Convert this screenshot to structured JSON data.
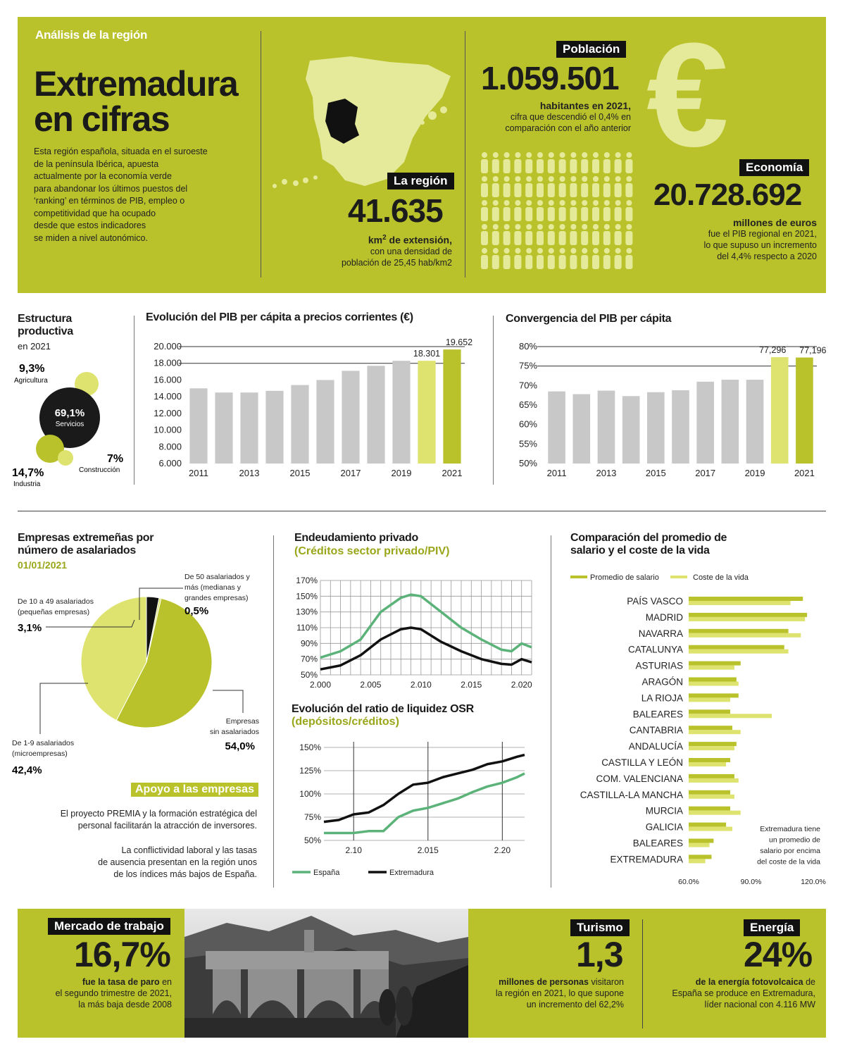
{
  "header": {
    "kicker": "Análisis de la región",
    "title_line1": "Extremadura",
    "title_line2": "en cifras",
    "intro": [
      "Esta región española, situada en el suroeste",
      "de la península Ibérica, apuesta",
      "actualmente por la economía verde",
      "para abandonar los últimos puestos del",
      "‘ranking’ en términos de PIB, empleo o",
      "competitividad que ha ocupado",
      "desde que estos indicadores",
      "se miden a nivel autonómico."
    ]
  },
  "region": {
    "tag": "La región",
    "value": "41.635",
    "unit_prefix": "km",
    "unit_sup": "2",
    "unit_suffix": " de extensión,",
    "line2": "con una densidad de",
    "line3": "población de 25,45 hab/km2"
  },
  "population": {
    "tag": "Población",
    "value": "1.059.501",
    "bold": "habitantes en 2021,",
    "line2": "cifra que descendió el 0,4% en",
    "line3": "comparación con el año anterior"
  },
  "economy": {
    "tag": "Economía",
    "symbol": "€",
    "value": "20.728.692",
    "bold": "millones de euros",
    "line2": "fue el PIB regional en 2021,",
    "line3": "lo que supuso un incremento",
    "line4": "del 4,4% respecto a 2020"
  },
  "structure": {
    "title1": "Estructura",
    "title2": "productiva",
    "year": "en 2021",
    "agri_pct": "9,3%",
    "agri_label": "Agricultura",
    "serv_pct": "69,1%",
    "serv_label": "Servicios",
    "ind_pct": "14,7%",
    "ind_label": "Industria",
    "cons_pct": "7%",
    "cons_label": "Construcción"
  },
  "colors": {
    "lime": "#b9c22a",
    "light_lime": "#dde36e",
    "grey": "#c8c8c8",
    "green_line": "#5cb37a",
    "black": "#111111"
  },
  "chart_data": [
    {
      "type": "bar",
      "title": "Evolución del PIB per cápita a precios corrientes (€)",
      "categories": [
        "2011",
        "2012",
        "2013",
        "2014",
        "2015",
        "2016",
        "2017",
        "2018",
        "2019",
        "2020",
        "2021"
      ],
      "x_tick_labels": [
        "2011",
        "2013",
        "2015",
        "2017",
        "2019",
        "2021"
      ],
      "values": [
        15000,
        14500,
        14500,
        14700,
        15400,
        16000,
        17100,
        17700,
        18300,
        18301,
        19652
      ],
      "data_labels": {
        "2020": "18.301",
        "2021": "19.652"
      },
      "y_tick_labels": [
        "20.000",
        "18.000",
        "16.000",
        "14.000",
        "12.000",
        "10.000",
        "8.000",
        "6.000"
      ],
      "ylim": [
        6000,
        20000
      ]
    },
    {
      "type": "bar",
      "title": "Convergencia del PIB per cápita",
      "categories": [
        "2011",
        "2012",
        "2013",
        "2014",
        "2015",
        "2016",
        "2017",
        "2018",
        "2019",
        "2020",
        "2021"
      ],
      "x_tick_labels": [
        "2011",
        "2013",
        "2015",
        "2017",
        "2019",
        "2021"
      ],
      "values": [
        68.5,
        67.8,
        68.7,
        67.3,
        68.3,
        68.8,
        71,
        71.5,
        71.5,
        77.296,
        77.196
      ],
      "data_labels": {
        "2020": "77,296",
        "2021": "77,196"
      },
      "y_tick_labels": [
        "80%",
        "75%",
        "70%",
        "65%",
        "60%",
        "55%",
        "50%"
      ],
      "ylim": [
        50,
        80
      ]
    },
    {
      "type": "pie",
      "title": "Empresas extremeñas por número de asalariados",
      "subtitle": "01/01/2021",
      "slices": [
        {
          "label": "Empresas sin asalariados",
          "value": 54.0,
          "text": "54,0%"
        },
        {
          "label": "De 1-9 asalariados (microempresas)",
          "value": 42.4,
          "text": "42,4%"
        },
        {
          "label": "De 10 a 49 asalariados (pequeñas empresas)",
          "value": 3.1,
          "text": "3,1%"
        },
        {
          "label": "De 50 asalariados y más (medianas y grandes empresas)",
          "value": 0.5,
          "text": "0,5%"
        }
      ]
    },
    {
      "type": "line",
      "title": "Endeudamiento privado",
      "subtitle": "(Créditos sector privado/PIV)",
      "y_tick_labels": [
        "170%",
        "150%",
        "130%",
        "110%",
        "90%",
        "70%",
        "50%"
      ],
      "x_tick_labels": [
        "2.000",
        "2.005",
        "2.010",
        "2.015",
        "2.020"
      ],
      "xlim": [
        2000,
        2021
      ],
      "ylim": [
        50,
        170
      ],
      "series": [
        {
          "name": "España",
          "x": [
            2000,
            2002,
            2004,
            2006,
            2008,
            2009,
            2010,
            2012,
            2014,
            2016,
            2018,
            2019,
            2020,
            2021
          ],
          "y": [
            72,
            80,
            95,
            130,
            148,
            152,
            150,
            130,
            110,
            95,
            82,
            80,
            90,
            85
          ]
        },
        {
          "name": "Extremadura",
          "x": [
            2000,
            2002,
            2004,
            2006,
            2008,
            2009,
            2010,
            2012,
            2014,
            2016,
            2018,
            2019,
            2020,
            2021
          ],
          "y": [
            57,
            62,
            75,
            95,
            108,
            110,
            108,
            92,
            80,
            70,
            64,
            63,
            70,
            66
          ]
        }
      ]
    },
    {
      "type": "line",
      "title": "Evolución del ratio de liquidez OSR",
      "subtitle": "(depósitos/créditos)",
      "y_tick_labels": [
        "150%",
        "125%",
        "100%",
        "75%",
        "50%"
      ],
      "x_tick_labels": [
        "2.10",
        "2.015",
        "2.20"
      ],
      "xlim": [
        2008,
        2021.5
      ],
      "ylim": [
        50,
        150
      ],
      "legend": [
        "España",
        "Extremadura"
      ],
      "series": [
        {
          "name": "España",
          "x": [
            2008,
            2009,
            2010,
            2011,
            2012,
            2013,
            2014,
            2015,
            2016,
            2017,
            2018,
            2019,
            2020,
            2021,
            2021.5
          ],
          "y": [
            58,
            58,
            58,
            60,
            60,
            75,
            82,
            85,
            90,
            95,
            102,
            108,
            112,
            118,
            122
          ]
        },
        {
          "name": "Extremadura",
          "x": [
            2008,
            2009,
            2010,
            2011,
            2012,
            2013,
            2014,
            2015,
            2016,
            2017,
            2018,
            2019,
            2020,
            2021,
            2021.5
          ],
          "y": [
            70,
            72,
            78,
            80,
            88,
            100,
            110,
            112,
            118,
            122,
            126,
            132,
            135,
            140,
            142
          ]
        }
      ]
    },
    {
      "type": "bar",
      "orientation": "horizontal",
      "title": "Comparación del promedio de salario y el coste de la vida",
      "legend": [
        "Promedio de salario",
        "Coste de la vida"
      ],
      "x_tick_labels": [
        "60.0%",
        "90.0%",
        "120.0%"
      ],
      "xlim": [
        60,
        120
      ],
      "categories": [
        "PAÍS VASCO",
        "MADRID",
        "NAVARRA",
        "CATALUNYA",
        "ASTURIAS",
        "ARAGÓN",
        "LA RIOJA",
        "BALEARES",
        "CANTABRIA",
        "ANDALUCÍA",
        "CASTILLA Y LEÓN",
        "COM. VALENCIANA",
        "CASTILLA-LA MANCHA",
        "MURCIA",
        "GALICIA",
        "BALEARES",
        "EXTREMADURA"
      ],
      "series": [
        {
          "name": "Promedio de salario",
          "values": [
            115,
            117,
            108,
            106,
            85,
            83,
            84,
            80,
            81,
            83,
            80,
            82,
            80,
            80,
            78,
            72,
            71
          ]
        },
        {
          "name": "Coste de la vida",
          "values": [
            109,
            116,
            114,
            108,
            82,
            84,
            80,
            100,
            85,
            82,
            78,
            84,
            82,
            85,
            81,
            70,
            68
          ]
        }
      ],
      "annotation": [
        "Extremadura tiene",
        "un promedio de",
        "salario por encima",
        "del coste de la vida"
      ]
    }
  ],
  "support": {
    "tag": "Apoyo a las empresas",
    "p1": [
      "El proyecto PREMIA y la formación estratégica del",
      "personal facilitarán la atracción de inversores."
    ],
    "p2": [
      "La conflictividad laboral y las tasas",
      "de ausencia presentan en la región unos",
      "de los índices más bajos de España."
    ]
  },
  "pie_labels": {
    "l50": [
      "De 50 asalariados y",
      "más (medianas y",
      "grandes empresas)"
    ],
    "l10": [
      "De 10 a 49 asalariados",
      "(pequeñas empresas)"
    ],
    "l1": [
      "De 1-9 asalariados",
      "(microempresas)"
    ],
    "l0": [
      "Empresas",
      "sin asalariados"
    ]
  },
  "footer": {
    "labor_tag": "Mercado de trabajo",
    "labor_value": "16,7%",
    "labor_bold": "fue la tasa de paro",
    "labor_rest": " en",
    "labor_l2": "el segundo trimestre de 2021,",
    "labor_l3": "la más baja desde 2008",
    "tour_tag": "Turismo",
    "tour_value": "1,3",
    "tour_bold": "millones de personas",
    "tour_rest": " visitaron",
    "tour_l2": "la región en 2021, lo que supone",
    "tour_l3": "un incremento del 62,2%",
    "energy_tag": "Energía",
    "energy_value": "24%",
    "energy_bold": "de la energía fotovolcaica",
    "energy_rest": " de",
    "energy_l2": "España se produce en Extremadura,",
    "energy_l3": "líder nacional con 4.116 MW"
  }
}
